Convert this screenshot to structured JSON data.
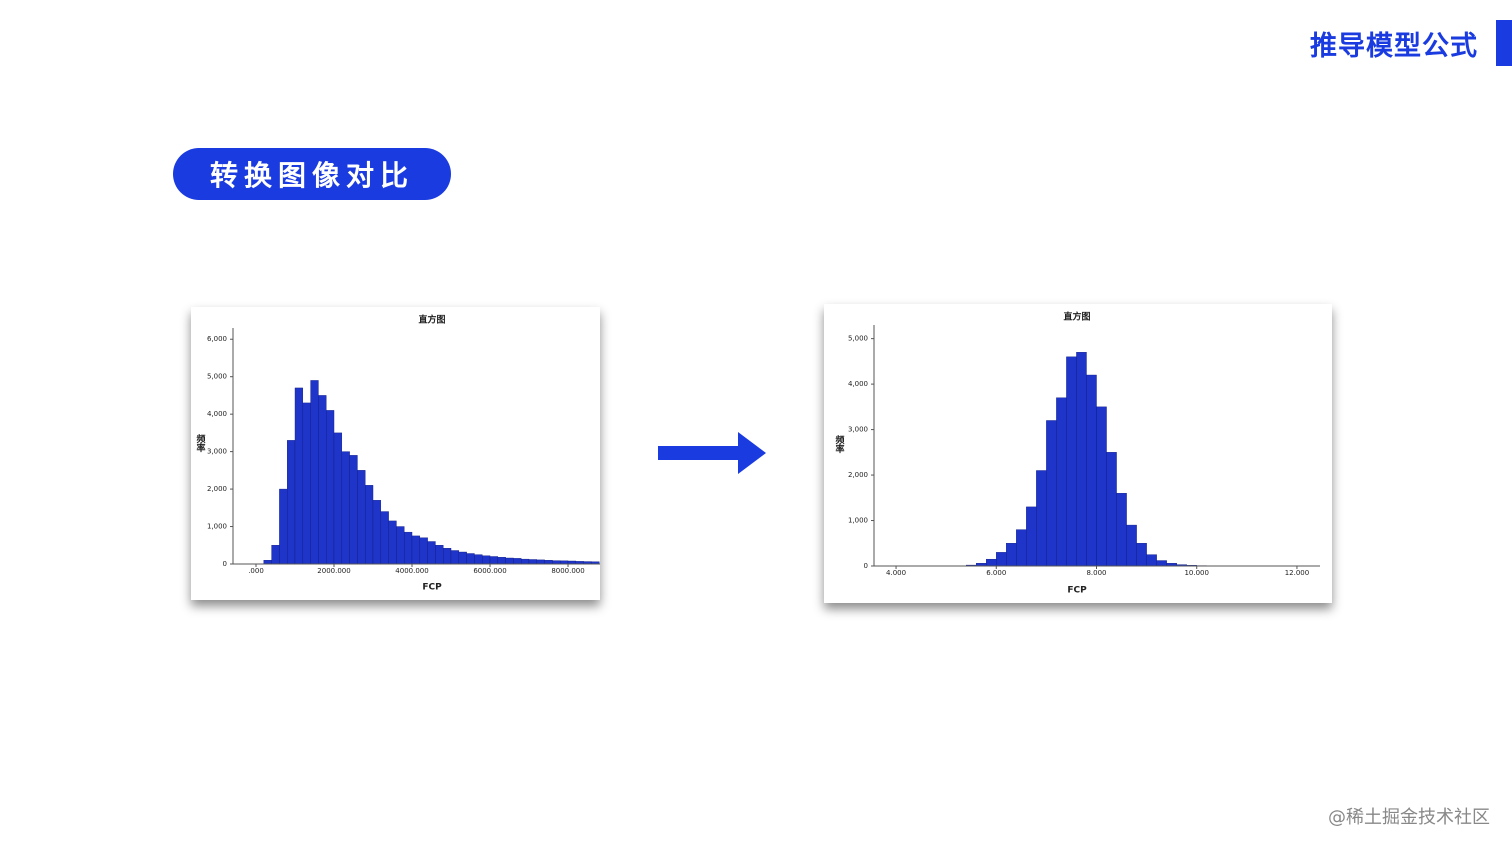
{
  "header": {
    "title": "推导模型公式"
  },
  "section": {
    "label": "转换图像对比"
  },
  "watermark": "@稀土掘金技术社区",
  "chart_data": [
    {
      "type": "histogram",
      "title": "直方图",
      "x_label": "FCP",
      "y_label": "频率",
      "color": "#1f35c9",
      "bins": [
        200,
        400,
        600,
        800,
        1000,
        1200,
        1400,
        1600,
        1800,
        2000,
        2200,
        2400,
        2600,
        2800,
        3000,
        3200,
        3400,
        3600,
        3800,
        4000,
        4200,
        4400,
        4600,
        4800,
        5000,
        5200,
        5400,
        5600,
        5800,
        6000,
        6200,
        6400,
        6600,
        6800,
        7000,
        7200,
        7400,
        7600,
        7800,
        8000,
        8200,
        8400,
        8600,
        8800
      ],
      "values": [
        100,
        500,
        2000,
        3300,
        4700,
        4300,
        4900,
        4500,
        4100,
        3500,
        3000,
        2900,
        2500,
        2100,
        1700,
        1400,
        1150,
        1000,
        850,
        750,
        700,
        600,
        500,
        420,
        360,
        320,
        280,
        250,
        220,
        200,
        180,
        160,
        150,
        130,
        120,
        110,
        100,
        90,
        85,
        80,
        70,
        65,
        60
      ],
      "xlim": [
        -590,
        8820
      ],
      "ylim": [
        0,
        6300
      ],
      "xticks": [
        {
          "value": 0,
          "label": ".000"
        },
        {
          "value": 2000,
          "label": "2000.000"
        },
        {
          "value": 4000,
          "label": "4000.000"
        },
        {
          "value": 6000,
          "label": "6000.000"
        },
        {
          "value": 8000,
          "label": "8000.000"
        }
      ],
      "yticks": [
        0,
        {
          "value": 1000,
          "label": "1,000"
        },
        {
          "value": 2000,
          "label": "2,000"
        },
        {
          "value": 3000,
          "label": "3,000"
        },
        {
          "value": 4000,
          "label": "4,000"
        },
        {
          "value": 5000,
          "label": "5,000"
        },
        {
          "value": 6000,
          "label": "6,000"
        }
      ]
    },
    {
      "type": "histogram",
      "title": "直方图",
      "x_label": "FCP",
      "y_label": "频率",
      "color": "#1f35c9",
      "bins": [
        5.4,
        5.6,
        5.8,
        6.0,
        6.2,
        6.4,
        6.6,
        6.8,
        7.0,
        7.2,
        7.4,
        7.6,
        7.8,
        8.0,
        8.2,
        8.4,
        8.6,
        8.8,
        9.0,
        9.2,
        9.4,
        9.6,
        9.8,
        10.0,
        10.2,
        10.4,
        10.6
      ],
      "values": [
        20,
        60,
        150,
        300,
        500,
        800,
        1300,
        2100,
        3200,
        3700,
        4600,
        4700,
        4200,
        3500,
        2500,
        1600,
        900,
        500,
        250,
        120,
        60,
        30,
        15,
        8,
        4,
        2
      ],
      "xlim": [
        3.56,
        12.46
      ],
      "ylim": [
        0,
        5300
      ],
      "xticks": [
        {
          "value": 4,
          "label": "4.000"
        },
        {
          "value": 6,
          "label": "6.000"
        },
        {
          "value": 8,
          "label": "8.000"
        },
        {
          "value": 10,
          "label": "10.000"
        },
        {
          "value": 12,
          "label": "12.000"
        }
      ],
      "yticks": [
        0,
        {
          "value": 1000,
          "label": "1,000"
        },
        {
          "value": 2000,
          "label": "2,000"
        },
        {
          "value": 3000,
          "label": "3,000"
        },
        {
          "value": 4000,
          "label": "4,000"
        },
        {
          "value": 5000,
          "label": "5,000"
        }
      ]
    }
  ]
}
